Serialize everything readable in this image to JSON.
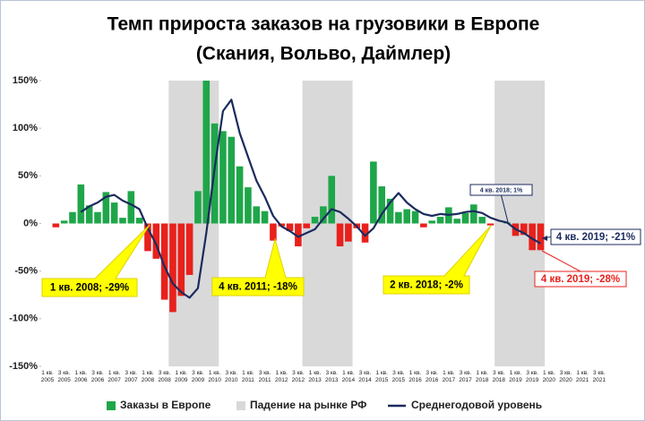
{
  "chart_data": {
    "type": "bar",
    "title": "Темп прироста заказов на грузовики в Европе",
    "subtitle": "(Скания, Вольво, Даймлер)",
    "categories": [
      "1 кв. 2005",
      null,
      "3 кв. 2005",
      null,
      "1 кв. 2006",
      null,
      "3 кв. 2006",
      null,
      "1 кв. 2007",
      null,
      "3 кв. 2007",
      null,
      "1 кв. 2008",
      null,
      "3 кв. 2008",
      null,
      "1 кв. 2009",
      null,
      "3 кв. 2009",
      null,
      "1 кв. 2010",
      null,
      "3 кв. 2010",
      null,
      "1 кв. 2011",
      null,
      "3 кв. 2011",
      null,
      "1 кв. 2012",
      null,
      "3 кв. 2012",
      null,
      "1 кв. 2013",
      null,
      "3 кв. 2013",
      null,
      "1 кв. 2014",
      null,
      "3 кв. 2014",
      null,
      "1 кв. 2015",
      null,
      "3 кв. 2015",
      null,
      "1 кв. 2016",
      null,
      "3 кв. 2016",
      null,
      "1 кв. 2017",
      null,
      "3 кв. 2017",
      null,
      "1 кв. 2018",
      null,
      "3 кв. 2018",
      null,
      "1 кв. 2019",
      null,
      "3 кв. 2019",
      null,
      "1 кв. 2020",
      null,
      "3 кв. 2020",
      null,
      "1 кв. 2021",
      null,
      "3 кв. 2021",
      null
    ],
    "series": [
      {
        "name": "Заказы в Европе",
        "type": "bar",
        "color": "#1fa64a",
        "negative_color": "#e8211c",
        "values": [
          null,
          -4,
          3,
          12,
          41,
          19,
          12,
          33,
          22,
          6,
          34,
          6,
          -29,
          -37,
          -80,
          -93,
          -76,
          -54,
          34,
          150,
          105,
          97,
          91,
          60,
          38,
          18,
          13,
          -18,
          -3,
          -8,
          -24,
          -5,
          7,
          18,
          50,
          -24,
          -19,
          -5,
          -20,
          65,
          39,
          26,
          12,
          15,
          13,
          -4,
          3,
          7,
          17,
          5,
          11,
          20,
          7,
          -2,
          0,
          1,
          -13,
          -12,
          -28,
          -28,
          null,
          null,
          null,
          null,
          null,
          null,
          null,
          null
        ]
      },
      {
        "name": "Среднегодовой уровень",
        "type": "line",
        "color": "#1b2a5e",
        "values": [
          null,
          null,
          null,
          null,
          12,
          18,
          22,
          28,
          30,
          24,
          20,
          15,
          -5,
          -22,
          -45,
          -63,
          -72,
          -78,
          -68,
          -10,
          58,
          118,
          130,
          95,
          70,
          45,
          28,
          8,
          -3,
          -8,
          -14,
          -10,
          -6,
          5,
          15,
          12,
          5,
          -3,
          -13,
          -5,
          10,
          22,
          32,
          22,
          15,
          10,
          8,
          10,
          9,
          10,
          12,
          13,
          11,
          6,
          3,
          1,
          -6,
          -10,
          -16,
          -21,
          null,
          null,
          null,
          null,
          null,
          null,
          null,
          null
        ]
      }
    ],
    "shaded": {
      "name": "Падение на рынке РФ",
      "color": "#d9d9d9",
      "ranges": [
        [
          15,
          20
        ],
        [
          31,
          36
        ],
        [
          54,
          59
        ]
      ]
    },
    "annotations": [
      {
        "text": "1 кв. 2008; -29%",
        "index": 12
      },
      {
        "text": "4 кв. 2011; -18%",
        "index": 27
      },
      {
        "text": "2 кв. 2018; -2%",
        "index": 53
      },
      {
        "text": "4 кв. 2018; 1%",
        "index": 55
      },
      {
        "text": "4 кв. 2019; -21%",
        "index": 59
      },
      {
        "text": "4 кв. 2019; -28%",
        "index": 59
      }
    ],
    "ylim": [
      -150,
      150
    ],
    "yticks": [
      {
        "value": -150,
        "label": "-150%"
      },
      {
        "value": -100,
        "label": "-100%"
      },
      {
        "value": -50,
        "label": "-50%"
      },
      {
        "value": 0,
        "label": "0%"
      },
      {
        "value": 50,
        "label": "50%"
      },
      {
        "value": 100,
        "label": "100%"
      },
      {
        "value": 150,
        "label": "150%"
      }
    ]
  }
}
